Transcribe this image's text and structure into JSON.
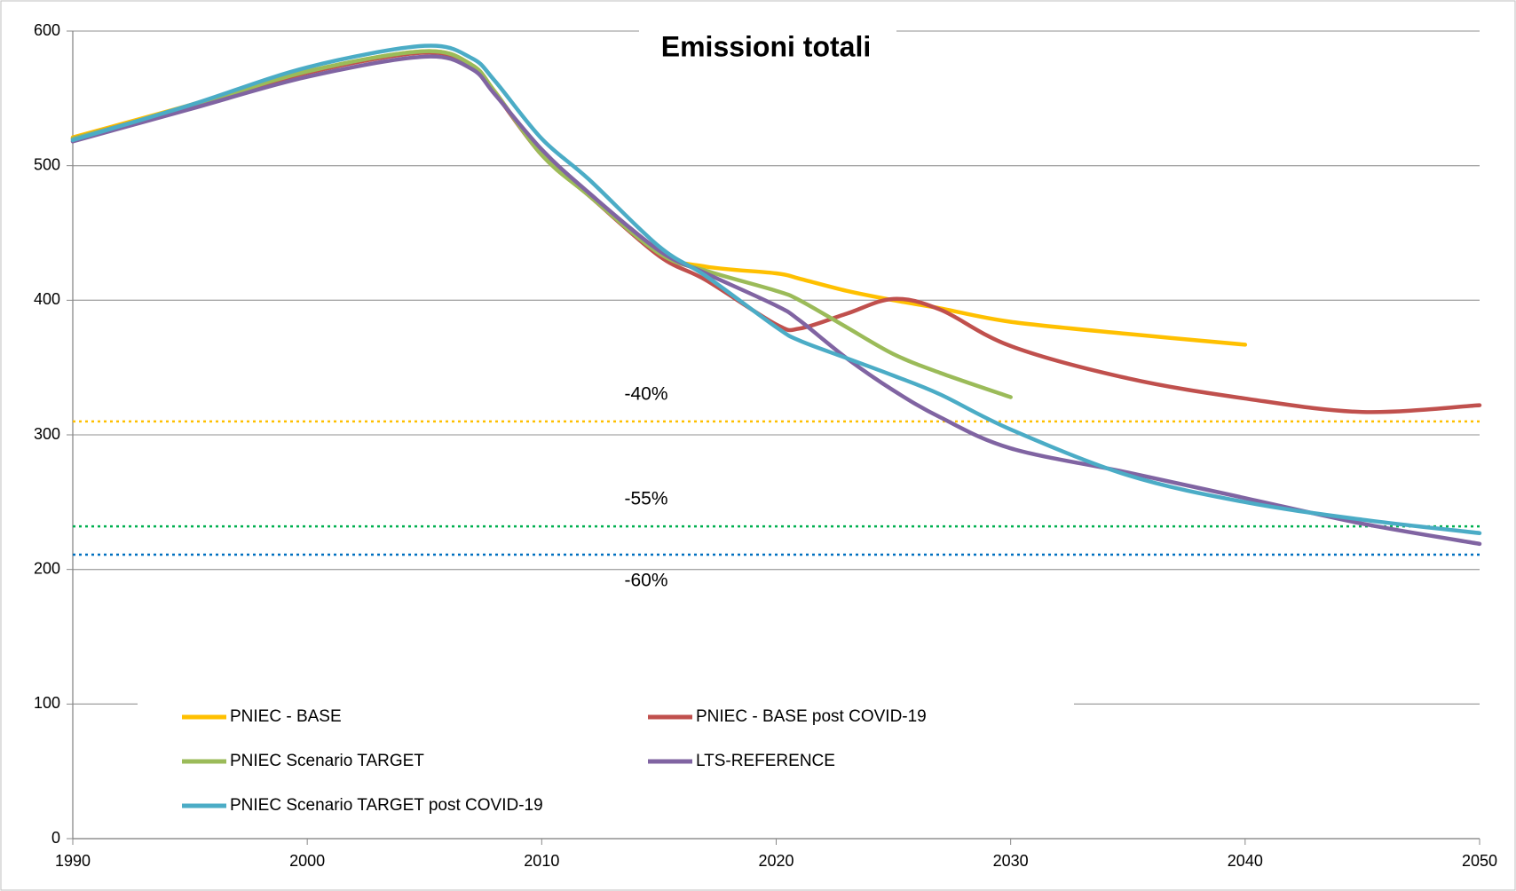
{
  "chart_data": {
    "type": "line",
    "title": "Emissioni totali",
    "x": [
      1990,
      1995,
      2000,
      2005,
      2007,
      2008,
      2010,
      2012,
      2015,
      2017,
      2020,
      2021,
      2023,
      2025,
      2027,
      2030,
      2035,
      2040,
      2045,
      2050
    ],
    "series": [
      {
        "name": "PNIEC - BASE",
        "color": "#ffc000",
        "values": [
          521,
          545,
          570,
          585,
          575,
          555,
          508,
          478,
          435,
          425,
          420,
          416,
          407,
          400,
          394,
          384,
          375,
          367,
          null,
          null
        ]
      },
      {
        "name": "PNIEC - BASE post COVID-19",
        "color": "#c0504d",
        "values": [
          520,
          544,
          569,
          584,
          574,
          554,
          508,
          478,
          433,
          415,
          382,
          379,
          390,
          401,
          393,
          366,
          342,
          327,
          317,
          322
        ]
      },
      {
        "name": "PNIEC Scenario TARGET",
        "color": "#9bbb59",
        "values": [
          520,
          544,
          570,
          585,
          575,
          555,
          508,
          478,
          435,
          422,
          407,
          400,
          380,
          360,
          346,
          328,
          null,
          null,
          null,
          null
        ]
      },
      {
        "name": "LTS-REFERENCE",
        "color": "#8064a2",
        "values": [
          518,
          542,
          566,
          581,
          572,
          553,
          512,
          480,
          437,
          420,
          396,
          385,
          357,
          333,
          313,
          290,
          272,
          253,
          234,
          219
        ]
      },
      {
        "name": "PNIEC Scenario TARGET post COVID-19",
        "color": "#4bacc6",
        "values": [
          519,
          545,
          573,
          589,
          580,
          563,
          520,
          490,
          440,
          418,
          380,
          370,
          357,
          344,
          330,
          304,
          270,
          250,
          237,
          227
        ]
      }
    ],
    "reference_lines": [
      {
        "label": "-40%",
        "value": 310,
        "color": "#ffc000"
      },
      {
        "label": "-55%",
        "value": 232,
        "color": "#00b050"
      },
      {
        "label": "-60%",
        "value": 211,
        "color": "#0070c0"
      }
    ],
    "xlim": [
      1990,
      2050
    ],
    "xticks": [
      1990,
      2000,
      2010,
      2020,
      2030,
      2040,
      2050
    ],
    "ylim": [
      0,
      600
    ],
    "yticks": [
      0,
      100,
      200,
      300,
      400,
      500,
      600
    ],
    "grid": true
  }
}
